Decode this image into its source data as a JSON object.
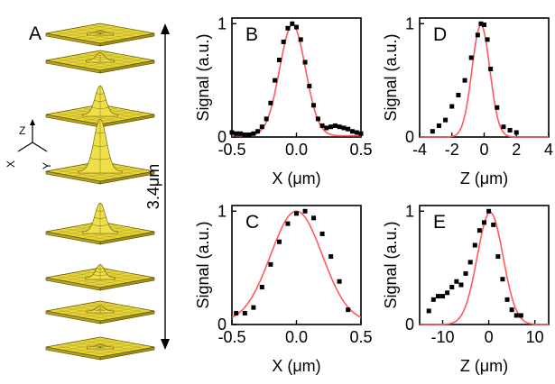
{
  "panel_a": {
    "letter": "A",
    "scale_label": "3.4μm",
    "axes": {
      "z": "Z",
      "x": "X",
      "y": "Y"
    },
    "slice_peaks": [
      0.05,
      0.15,
      0.55,
      1.0,
      0.55,
      0.25,
      0.1,
      0.05
    ],
    "colors": {
      "surface": "#e6d43a",
      "edge": "#5c5200"
    }
  },
  "colors": {
    "points": "#000000",
    "fit": "#ff5a5a"
  },
  "chart_data": [
    {
      "id": "B",
      "type": "scatter",
      "title": "B",
      "xlabel": "X (μm)",
      "ylabel": "Signal (a.u.)",
      "xlim": [
        -0.5,
        0.5
      ],
      "ylim": [
        0,
        1.05
      ],
      "xticks": [
        -0.5,
        0.0,
        0.5
      ],
      "xtick_labels": [
        "-0.5",
        "0.0",
        "0.5"
      ],
      "yticks": [
        0,
        1
      ],
      "ytick_labels": [
        "0",
        "1"
      ],
      "series": [
        {
          "kind": "points",
          "x": [
            -0.5,
            -0.467,
            -0.433,
            -0.4,
            -0.367,
            -0.333,
            -0.3,
            -0.267,
            -0.233,
            -0.2,
            -0.167,
            -0.133,
            -0.1,
            -0.067,
            -0.033,
            0.0,
            0.033,
            0.067,
            0.1,
            0.133,
            0.167,
            0.2,
            0.233,
            0.267,
            0.3,
            0.333,
            0.367,
            0.4,
            0.433,
            0.467,
            0.5
          ],
          "y": [
            0.04,
            0.03,
            0.03,
            0.02,
            0.02,
            0.03,
            0.05,
            0.09,
            0.16,
            0.3,
            0.5,
            0.68,
            0.84,
            0.96,
            1.0,
            0.97,
            0.86,
            0.66,
            0.45,
            0.28,
            0.16,
            0.1,
            0.08,
            0.09,
            0.1,
            0.09,
            0.08,
            0.07,
            0.05,
            0.04,
            0.03
          ]
        },
        {
          "kind": "fit",
          "model": "gaussian",
          "amplitude": 0.98,
          "center": -0.03,
          "sigma": 0.1,
          "offset": 0.01
        }
      ]
    },
    {
      "id": "C",
      "type": "scatter",
      "title": "C",
      "xlabel": "X (μm)",
      "ylabel": "Signal (a.u.)",
      "xlim": [
        -0.5,
        0.5
      ],
      "ylim": [
        0,
        1.05
      ],
      "xticks": [
        -0.5,
        0.0,
        0.5
      ],
      "xtick_labels": [
        "-0.5",
        "0.0",
        "0.5"
      ],
      "yticks": [
        0,
        1
      ],
      "ytick_labels": [
        "0",
        "1"
      ],
      "series": [
        {
          "kind": "points",
          "x": [
            -0.467,
            -0.4,
            -0.333,
            -0.267,
            -0.2,
            -0.133,
            -0.067,
            0.0,
            0.067,
            0.133,
            0.2,
            0.267,
            0.333,
            0.4
          ],
          "y": [
            0.1,
            0.1,
            0.15,
            0.33,
            0.53,
            0.73,
            0.89,
            0.98,
            1.0,
            0.94,
            0.8,
            0.6,
            0.38,
            0.13
          ]
        },
        {
          "kind": "fit",
          "model": "gaussian",
          "amplitude": 0.98,
          "center": 0.0,
          "sigma": 0.2,
          "offset": 0.02
        }
      ]
    },
    {
      "id": "D",
      "type": "scatter",
      "title": "D",
      "xlabel": "Z (μm)",
      "ylabel": "Signal (a.u.)",
      "xlim": [
        -4,
        4
      ],
      "ylim": [
        0,
        1.05
      ],
      "xticks": [
        -4,
        -2,
        0,
        2,
        4
      ],
      "xtick_labels": [
        "-4",
        "-2",
        "0",
        "2",
        "4"
      ],
      "yticks": [
        0,
        1
      ],
      "ytick_labels": [
        "0",
        "1"
      ],
      "series": [
        {
          "kind": "points",
          "x": [
            -3.2,
            -2.8,
            -2.4,
            -2.0,
            -1.6,
            -1.2,
            -0.8,
            -0.4,
            -0.2,
            0.0,
            0.2,
            0.4,
            0.8,
            1.2,
            1.6,
            2.0
          ],
          "y": [
            0.05,
            0.1,
            0.15,
            0.27,
            0.37,
            0.5,
            0.7,
            0.9,
            1.0,
            0.99,
            0.86,
            0.6,
            0.26,
            0.09,
            0.06,
            0.04
          ]
        },
        {
          "kind": "fit",
          "model": "gaussian",
          "amplitude": 0.99,
          "center": -0.2,
          "sigma": 0.55,
          "offset": 0.0
        }
      ]
    },
    {
      "id": "E",
      "type": "scatter",
      "title": "E",
      "xlabel": "Z (μm)",
      "ylabel": "Signal (a.u.)",
      "xlim": [
        -15,
        13
      ],
      "ylim": [
        0,
        1.05
      ],
      "xticks": [
        -10,
        0,
        10
      ],
      "xtick_labels": [
        "-10",
        "0",
        "10"
      ],
      "yticks": [
        0,
        1
      ],
      "ytick_labels": [
        "0",
        "1"
      ],
      "series": [
        {
          "kind": "points",
          "x": [
            -13,
            -12,
            -11,
            -10,
            -9,
            -8,
            -7,
            -6,
            -5,
            -4,
            -3,
            -2,
            -1,
            0,
            1,
            2,
            3,
            4,
            5,
            6,
            7
          ],
          "y": [
            0.12,
            0.22,
            0.25,
            0.25,
            0.28,
            0.33,
            0.38,
            0.35,
            0.45,
            0.55,
            0.7,
            0.83,
            0.9,
            1.0,
            0.88,
            0.6,
            0.4,
            0.22,
            0.13,
            0.08,
            0.08
          ]
        },
        {
          "kind": "fit",
          "model": "gaussian",
          "amplitude": 0.99,
          "center": 0.3,
          "sigma": 2.8,
          "offset": 0.0
        }
      ]
    }
  ]
}
